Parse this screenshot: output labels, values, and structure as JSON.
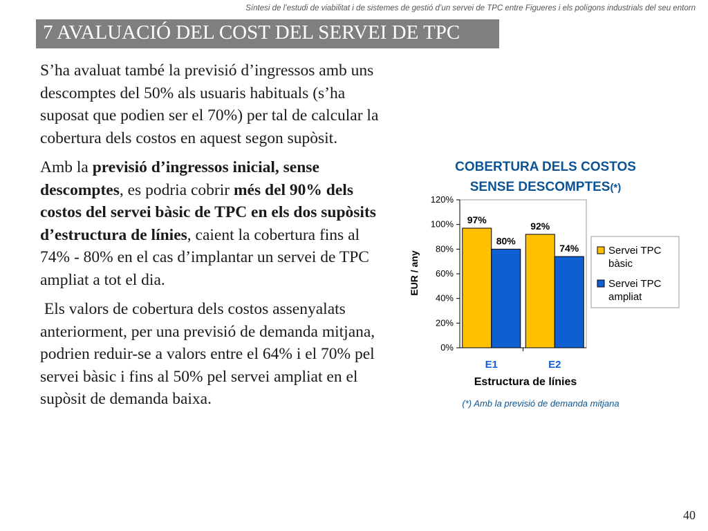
{
  "header_note": "Síntesi de l’estudi de viabilitat i de sistemes de gestió d’un servei de TPC entre Figueres i els polígons industrials del seu entorn",
  "title": "7 AVALUACIÓ DEL COST DEL SERVEI DE TPC",
  "paragraphs": {
    "p1": "S’ha avaluat també la previsió d’ingressos amb uns descomptes del 50% als usuaris habituals (s’ha suposat que podien ser el 70%) per tal de calcular la cobertura dels costos en aquest segon supòsit.",
    "p2": {
      "t1": "Amb la ",
      "b1": "previsió d’ingressos inicial, sense descomptes",
      "t2": ", es podria cobrir ",
      "b2": "més del 90% dels costos del servei bàsic de TPC en els dos supòsits d’estructura de línies",
      "t3": ", caient la cobertura fins al 74% - 80% en el cas d’implantar un servei de TPC ampliat a tot el dia."
    },
    "p3": " Els valors de cobertura dels costos assenyalats anteriorment, per una previsió de demanda mitjana, podrien reduir-se a valors entre el 64% i el 70% pel servei bàsic i fins al 50% pel servei ampliat en el supòsit de demanda baixa."
  },
  "page_number": "40",
  "colors": {
    "title_bar": "#7f7f7f",
    "series_basic": "#ffc000",
    "series_extended": "#0f5fd2",
    "chart_title": "#0b5394"
  },
  "chart_data": {
    "type": "bar",
    "title_line1": "COBERTURA DELS COSTOS",
    "title_line2": "SENSE DESCOMPTES",
    "title_suffix": "(*)",
    "xlabel": "Estructura de línies",
    "ylabel": "EUR / any",
    "categories": [
      "E1",
      "E2"
    ],
    "series": [
      {
        "name": "Servei TPC bàsic",
        "name_lines": [
          "Servei TPC",
          "bàsic"
        ],
        "values": [
          97,
          92
        ],
        "labels": [
          "97%",
          "92%"
        ],
        "color": "#ffc000"
      },
      {
        "name": "Servei TPC ampliat",
        "name_lines": [
          "Servei TPC",
          "ampliat"
        ],
        "values": [
          80,
          74
        ],
        "labels": [
          "80%",
          "74%"
        ],
        "color": "#0f5fd2"
      }
    ],
    "ylim": [
      0,
      120
    ],
    "yticks": [
      0,
      20,
      40,
      60,
      80,
      100,
      120
    ],
    "ytick_labels": [
      "0%",
      "20%",
      "40%",
      "60%",
      "80%",
      "100%",
      "120%"
    ],
    "grid": false,
    "legend_position": "right",
    "footnote": "(*) Amb la previsió de demanda mitjana"
  }
}
